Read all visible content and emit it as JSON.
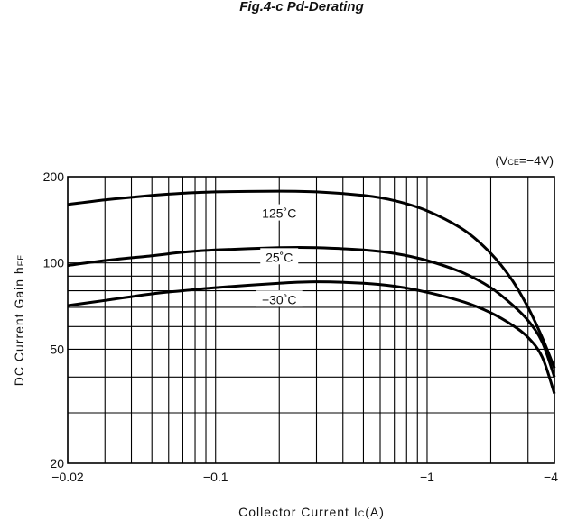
{
  "header_fragment": "Fig.4-c  Pd-Derating",
  "chart_data": {
    "type": "line",
    "title": "",
    "condition": {
      "prefix": "(V",
      "sub": "CE",
      "suffix": "=−4V)"
    },
    "xlabel": {
      "main": "Collector Current I",
      "sub": "C",
      "unit": "(A)"
    },
    "ylabel": {
      "main": "DC Current Gain h",
      "sub": "FE"
    },
    "x_scale": "log",
    "y_scale": "log",
    "xlim": [
      0.02,
      4
    ],
    "ylim": [
      20,
      200
    ],
    "x_ticks": [
      {
        "value": 0.02,
        "label": "−0.02"
      },
      {
        "value": 0.1,
        "label": "−0.1"
      },
      {
        "value": 1,
        "label": "−1"
      },
      {
        "value": 4,
        "label": "−4"
      }
    ],
    "y_ticks": [
      {
        "value": 20,
        "label": "20"
      },
      {
        "value": 50,
        "label": "50"
      },
      {
        "value": 100,
        "label": "100"
      },
      {
        "value": 200,
        "label": "200"
      }
    ],
    "x_grid": [
      0.02,
      0.03,
      0.04,
      0.05,
      0.06,
      0.07,
      0.08,
      0.09,
      0.1,
      0.2,
      0.3,
      0.4,
      0.5,
      0.6,
      0.7,
      0.8,
      0.9,
      1,
      2,
      3,
      4
    ],
    "y_grid": [
      20,
      30,
      40,
      50,
      60,
      70,
      80,
      90,
      100,
      200
    ],
    "grid": true,
    "series": [
      {
        "name": "125°C",
        "x": [
          0.02,
          0.03,
          0.05,
          0.07,
          0.1,
          0.2,
          0.3,
          0.5,
          0.7,
          1,
          1.5,
          2,
          2.5,
          3,
          3.5,
          4
        ],
        "y": [
          160,
          166,
          172,
          175,
          177,
          178,
          177,
          172,
          165,
          152,
          130,
          108,
          88,
          70,
          55,
          43
        ]
      },
      {
        "name": "25°C",
        "x": [
          0.02,
          0.03,
          0.05,
          0.07,
          0.1,
          0.2,
          0.3,
          0.5,
          0.7,
          1,
          1.5,
          2,
          2.5,
          3,
          3.5,
          4
        ],
        "y": [
          98,
          102,
          106,
          109,
          111,
          113,
          113,
          111,
          108,
          102,
          92,
          82,
          72,
          63,
          53,
          40
        ]
      },
      {
        "name": "−30°C",
        "x": [
          0.02,
          0.03,
          0.05,
          0.07,
          0.1,
          0.2,
          0.3,
          0.5,
          0.7,
          1,
          1.5,
          2,
          2.5,
          3,
          3.5,
          4
        ],
        "y": [
          71,
          74,
          78,
          80,
          82,
          85,
          86,
          85,
          83,
          79,
          73,
          67,
          61,
          55,
          47,
          35
        ]
      }
    ],
    "annotations": [
      {
        "series": 0,
        "text": "125˚C",
        "x": 0.2,
        "y": 148
      },
      {
        "series": 1,
        "text": "25˚C",
        "x": 0.2,
        "y": 104
      },
      {
        "series": 2,
        "text": "−30˚C",
        "x": 0.2,
        "y": 74
      }
    ]
  }
}
